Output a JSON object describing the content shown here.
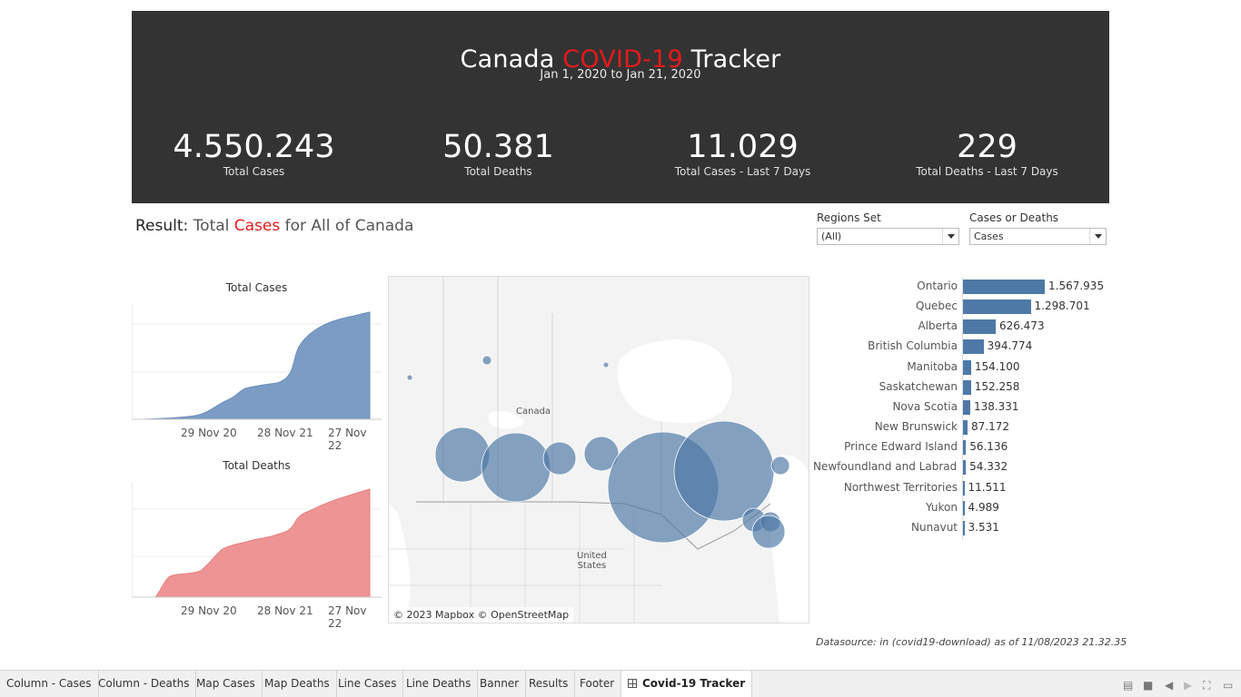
{
  "banner": {
    "title_pre": "Canada ",
    "title_red": "COVID-19",
    "title_post": " Tracker",
    "daterange": "Jan 1, 2020 to Jan 21, 2020",
    "kpis": [
      {
        "value": "4.550.243",
        "label": "Total Cases"
      },
      {
        "value": "50.381",
        "label": "Total Deaths"
      },
      {
        "value": "11.029",
        "label": "Total Cases - Last 7 Days"
      },
      {
        "value": "229",
        "label": "Total Deaths - Last 7 Days"
      }
    ]
  },
  "result": {
    "prefix": "Result:",
    "part1": "Total ",
    "measure": "Cases",
    "part2": " for All of Canada"
  },
  "filters": [
    {
      "label": "Regions Set",
      "value": "(All)"
    },
    {
      "label": "Cases or Deaths",
      "value": "Cases"
    }
  ],
  "mini_cases": {
    "title": "Total Cases",
    "ticks": [
      "29 Nov 20",
      "28 Nov 21",
      "27 Nov 22"
    ],
    "color": "#7b9cc4"
  },
  "mini_deaths": {
    "title": "Total Deaths",
    "ticks": [
      "29 Nov 20",
      "28 Nov 21",
      "27 Nov 22"
    ],
    "color": "#ee8e8e"
  },
  "map": {
    "canada_label": "Canada",
    "us_label_1": "United",
    "us_label_2": "States",
    "attribution": "© 2023 Mapbox © OpenStreetMap",
    "bubble_color": "#4e79a7"
  },
  "chart_data": {
    "type": "bar",
    "categories": [
      "Ontario",
      "Quebec",
      "Alberta",
      "British Columbia",
      "Manitoba",
      "Saskatchewan",
      "Nova Scotia",
      "New Brunswick",
      "Prince Edward Island",
      "Newfoundland and Labrad..",
      "Northwest Territories",
      "Yukon",
      "Nunavut"
    ],
    "values": [
      1567935,
      1298701,
      626473,
      394774,
      154100,
      152258,
      138331,
      87172,
      56136,
      54332,
      11511,
      4989,
      3531
    ],
    "labels": [
      "1.567.935",
      "1.298.701",
      "626.473",
      "394.774",
      "154.100",
      "152.258",
      "138.331",
      "87.172",
      "56.136",
      "54.332",
      "11.511",
      "4.989",
      "3.531"
    ],
    "color": "#4e79a7"
  },
  "datasource": "Datasource: in (covid19-download) as of 11/08/2023 21.32.35",
  "tabs": [
    "Column - Cases",
    "Column - Deaths",
    "Map Cases",
    "Map Deaths",
    "Line Cases",
    "Line Deaths",
    "Banner",
    "Results",
    "Footer",
    "Covid-19 Tracker"
  ],
  "active_tab": "Covid-19 Tracker"
}
